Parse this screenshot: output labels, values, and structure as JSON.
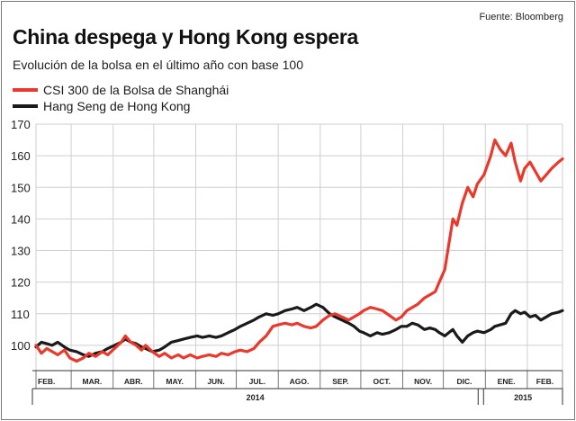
{
  "source": "Fuente: Bloomberg",
  "title": "China despega y Hong Kong espera",
  "subtitle": "Evolución de la bolsa en el último año con base 100",
  "colors": {
    "csi": "#e8392c",
    "hsi": "#1a1a1a",
    "grid": "#cfcfcf"
  },
  "chart_data": {
    "type": "line",
    "title": "China despega y Hong Kong espera",
    "subtitle": "Evolución de la bolsa en el último año con base 100",
    "ylim": [
      92,
      170
    ],
    "y_ticks": [
      100,
      110,
      120,
      130,
      140,
      150,
      160,
      170
    ],
    "x_range": [
      "2014-02-03",
      "2015-02-27"
    ],
    "grid": true,
    "legend_position": "top-left",
    "month_ticks": [
      {
        "label": "FEB.",
        "date": "2014-02-01"
      },
      {
        "label": "MAR.",
        "date": "2014-03-01"
      },
      {
        "label": "ABR.",
        "date": "2014-04-01"
      },
      {
        "label": "MAY.",
        "date": "2014-05-01"
      },
      {
        "label": "JUN.",
        "date": "2014-06-01"
      },
      {
        "label": "JUL.",
        "date": "2014-07-01"
      },
      {
        "label": "AGO.",
        "date": "2014-08-01"
      },
      {
        "label": "SEP.",
        "date": "2014-09-01"
      },
      {
        "label": "OCT.",
        "date": "2014-10-01"
      },
      {
        "label": "NOV.",
        "date": "2014-11-01"
      },
      {
        "label": "DIC.",
        "date": "2014-12-01"
      },
      {
        "label": "ENE.",
        "date": "2015-01-01"
      },
      {
        "label": "FEB.",
        "date": "2015-02-01"
      }
    ],
    "year_labels": [
      {
        "label": "2014",
        "date": "2014-07-01"
      },
      {
        "label": "2015",
        "date": "2015-01-15"
      }
    ],
    "series": [
      {
        "name": "CSI 300 de la Bolsa de Shanghái",
        "color": "#e8392c",
        "points": [
          [
            "2014-02-03",
            100
          ],
          [
            "2014-02-07",
            97.5
          ],
          [
            "2014-02-11",
            99
          ],
          [
            "2014-02-15",
            98
          ],
          [
            "2014-02-19",
            97
          ],
          [
            "2014-02-24",
            98.5
          ],
          [
            "2014-02-28",
            96
          ],
          [
            "2014-03-05",
            95
          ],
          [
            "2014-03-10",
            96
          ],
          [
            "2014-03-14",
            97.5
          ],
          [
            "2014-03-19",
            96.5
          ],
          [
            "2014-03-24",
            98
          ],
          [
            "2014-03-28",
            97
          ],
          [
            "2014-04-02",
            99
          ],
          [
            "2014-04-07",
            101
          ],
          [
            "2014-04-10",
            103
          ],
          [
            "2014-04-14",
            101
          ],
          [
            "2014-04-18",
            100
          ],
          [
            "2014-04-22",
            98.5
          ],
          [
            "2014-04-25",
            100
          ],
          [
            "2014-04-30",
            98
          ],
          [
            "2014-05-05",
            96.5
          ],
          [
            "2014-05-09",
            97.5
          ],
          [
            "2014-05-14",
            96
          ],
          [
            "2014-05-19",
            97
          ],
          [
            "2014-05-23",
            96
          ],
          [
            "2014-05-28",
            97
          ],
          [
            "2014-06-02",
            96
          ],
          [
            "2014-06-06",
            96.5
          ],
          [
            "2014-06-11",
            97
          ],
          [
            "2014-06-16",
            96.5
          ],
          [
            "2014-06-20",
            97.5
          ],
          [
            "2014-06-25",
            97
          ],
          [
            "2014-06-30",
            98
          ],
          [
            "2014-07-04",
            98.5
          ],
          [
            "2014-07-09",
            98
          ],
          [
            "2014-07-14",
            99
          ],
          [
            "2014-07-18",
            101
          ],
          [
            "2014-07-23",
            103
          ],
          [
            "2014-07-28",
            106
          ],
          [
            "2014-08-01",
            106.5
          ],
          [
            "2014-08-06",
            107
          ],
          [
            "2014-08-11",
            106.5
          ],
          [
            "2014-08-15",
            107
          ],
          [
            "2014-08-20",
            106
          ],
          [
            "2014-08-25",
            105.5
          ],
          [
            "2014-08-29",
            106
          ],
          [
            "2014-09-03",
            108
          ],
          [
            "2014-09-08",
            109.5
          ],
          [
            "2014-09-12",
            110
          ],
          [
            "2014-09-17",
            109
          ],
          [
            "2014-09-22",
            108
          ],
          [
            "2014-09-26",
            109
          ],
          [
            "2014-09-30",
            110
          ],
          [
            "2014-10-03",
            111
          ],
          [
            "2014-10-08",
            112
          ],
          [
            "2014-10-13",
            111.5
          ],
          [
            "2014-10-17",
            111
          ],
          [
            "2014-10-22",
            109.5
          ],
          [
            "2014-10-27",
            108
          ],
          [
            "2014-10-31",
            109
          ],
          [
            "2014-11-04",
            111
          ],
          [
            "2014-11-08",
            112
          ],
          [
            "2014-11-12",
            113
          ],
          [
            "2014-11-17",
            115
          ],
          [
            "2014-11-21",
            116
          ],
          [
            "2014-11-25",
            117
          ],
          [
            "2014-11-28",
            120
          ],
          [
            "2014-12-02",
            124
          ],
          [
            "2014-12-05",
            132
          ],
          [
            "2014-12-08",
            140
          ],
          [
            "2014-12-11",
            138
          ],
          [
            "2014-12-15",
            145
          ],
          [
            "2014-12-19",
            150
          ],
          [
            "2014-12-23",
            147
          ],
          [
            "2014-12-26",
            151
          ],
          [
            "2014-12-31",
            154
          ],
          [
            "2015-01-05",
            160
          ],
          [
            "2015-01-08",
            165
          ],
          [
            "2015-01-12",
            162
          ],
          [
            "2015-01-16",
            160
          ],
          [
            "2015-01-20",
            164
          ],
          [
            "2015-01-23",
            158
          ],
          [
            "2015-01-27",
            152
          ],
          [
            "2015-01-30",
            156
          ],
          [
            "2015-02-03",
            158
          ],
          [
            "2015-02-07",
            155
          ],
          [
            "2015-02-11",
            152
          ],
          [
            "2015-02-15",
            154
          ],
          [
            "2015-02-19",
            156
          ],
          [
            "2015-02-24",
            158
          ],
          [
            "2015-02-27",
            159
          ]
        ]
      },
      {
        "name": "Hang Seng de Hong Kong",
        "color": "#1a1a1a",
        "points": [
          [
            "2014-02-03",
            99.5
          ],
          [
            "2014-02-07",
            101
          ],
          [
            "2014-02-11",
            100.5
          ],
          [
            "2014-02-15",
            100
          ],
          [
            "2014-02-19",
            101
          ],
          [
            "2014-02-24",
            99.5
          ],
          [
            "2014-02-28",
            98.5
          ],
          [
            "2014-03-05",
            98
          ],
          [
            "2014-03-10",
            97
          ],
          [
            "2014-03-14",
            96.5
          ],
          [
            "2014-03-19",
            97.5
          ],
          [
            "2014-03-24",
            98
          ],
          [
            "2014-03-28",
            99
          ],
          [
            "2014-04-02",
            100
          ],
          [
            "2014-04-07",
            101
          ],
          [
            "2014-04-10",
            102
          ],
          [
            "2014-04-14",
            101
          ],
          [
            "2014-04-18",
            100.5
          ],
          [
            "2014-04-22",
            99.5
          ],
          [
            "2014-04-25",
            99
          ],
          [
            "2014-04-30",
            98
          ],
          [
            "2014-05-05",
            98.5
          ],
          [
            "2014-05-09",
            99.5
          ],
          [
            "2014-05-14",
            101
          ],
          [
            "2014-05-19",
            101.5
          ],
          [
            "2014-05-23",
            102
          ],
          [
            "2014-05-28",
            102.5
          ],
          [
            "2014-06-02",
            103
          ],
          [
            "2014-06-06",
            102.5
          ],
          [
            "2014-06-11",
            103
          ],
          [
            "2014-06-16",
            102.5
          ],
          [
            "2014-06-20",
            103
          ],
          [
            "2014-06-25",
            104
          ],
          [
            "2014-06-30",
            105
          ],
          [
            "2014-07-04",
            106
          ],
          [
            "2014-07-09",
            107
          ],
          [
            "2014-07-14",
            108
          ],
          [
            "2014-07-18",
            109
          ],
          [
            "2014-07-23",
            110
          ],
          [
            "2014-07-28",
            109.5
          ],
          [
            "2014-08-01",
            110
          ],
          [
            "2014-08-06",
            111
          ],
          [
            "2014-08-11",
            111.5
          ],
          [
            "2014-08-15",
            112
          ],
          [
            "2014-08-20",
            111
          ],
          [
            "2014-08-25",
            112
          ],
          [
            "2014-08-29",
            113
          ],
          [
            "2014-09-03",
            112
          ],
          [
            "2014-09-08",
            110
          ],
          [
            "2014-09-12",
            109
          ],
          [
            "2014-09-17",
            108
          ],
          [
            "2014-09-22",
            107
          ],
          [
            "2014-09-26",
            106
          ],
          [
            "2014-09-30",
            104.5
          ],
          [
            "2014-10-03",
            104
          ],
          [
            "2014-10-08",
            103
          ],
          [
            "2014-10-13",
            104
          ],
          [
            "2014-10-17",
            103.5
          ],
          [
            "2014-10-22",
            104
          ],
          [
            "2014-10-27",
            105
          ],
          [
            "2014-10-31",
            106
          ],
          [
            "2014-11-04",
            106
          ],
          [
            "2014-11-08",
            107
          ],
          [
            "2014-11-12",
            106.5
          ],
          [
            "2014-11-17",
            105
          ],
          [
            "2014-11-21",
            105.5
          ],
          [
            "2014-11-25",
            105
          ],
          [
            "2014-11-28",
            104
          ],
          [
            "2014-12-02",
            103
          ],
          [
            "2014-12-05",
            104
          ],
          [
            "2014-12-08",
            105
          ],
          [
            "2014-12-11",
            103
          ],
          [
            "2014-12-15",
            101
          ],
          [
            "2014-12-19",
            103
          ],
          [
            "2014-12-23",
            104
          ],
          [
            "2014-12-26",
            104.5
          ],
          [
            "2014-12-31",
            104
          ],
          [
            "2015-01-05",
            105
          ],
          [
            "2015-01-08",
            106
          ],
          [
            "2015-01-12",
            106.5
          ],
          [
            "2015-01-16",
            107
          ],
          [
            "2015-01-20",
            110
          ],
          [
            "2015-01-23",
            111
          ],
          [
            "2015-01-27",
            110
          ],
          [
            "2015-01-30",
            110.5
          ],
          [
            "2015-02-03",
            109
          ],
          [
            "2015-02-07",
            109.5
          ],
          [
            "2015-02-11",
            108
          ],
          [
            "2015-02-15",
            109
          ],
          [
            "2015-02-19",
            110
          ],
          [
            "2015-02-24",
            110.5
          ],
          [
            "2015-02-27",
            111
          ]
        ]
      }
    ]
  }
}
